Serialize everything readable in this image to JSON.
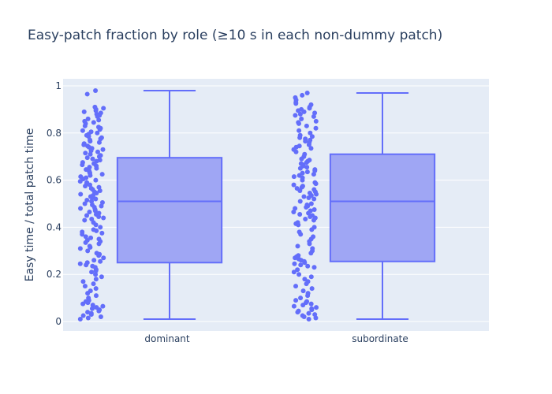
{
  "chart_data": {
    "type": "box",
    "title": "Easy-patch fraction by role (≥10 s in each non-dummy patch)",
    "xlabel": "",
    "ylabel": "Easy time / total patch time",
    "ylim": [
      -0.04,
      1.03
    ],
    "yticks": [
      0,
      0.2,
      0.4,
      0.6,
      0.8,
      1
    ],
    "ytick_labels": [
      "0",
      "0.2",
      "0.4",
      "0.6",
      "0.8",
      "1"
    ],
    "categories": [
      "dominant",
      "subordinate"
    ],
    "boxes": [
      {
        "category": "dominant",
        "min": 0.01,
        "q1": 0.25,
        "median": 0.51,
        "q3": 0.695,
        "max": 0.98
      },
      {
        "category": "subordinate",
        "min": 0.01,
        "q1": 0.255,
        "median": 0.51,
        "q3": 0.71,
        "max": 0.97
      }
    ],
    "points": [
      {
        "category": "dominant",
        "values": [
          0.98,
          0.965,
          0.91,
          0.905,
          0.9,
          0.895,
          0.89,
          0.885,
          0.88,
          0.875,
          0.87,
          0.86,
          0.855,
          0.85,
          0.845,
          0.84,
          0.83,
          0.825,
          0.82,
          0.815,
          0.81,
          0.805,
          0.8,
          0.795,
          0.79,
          0.785,
          0.78,
          0.775,
          0.77,
          0.765,
          0.76,
          0.755,
          0.75,
          0.745,
          0.74,
          0.735,
          0.73,
          0.725,
          0.72,
          0.715,
          0.71,
          0.705,
          0.7,
          0.695,
          0.69,
          0.685,
          0.68,
          0.675,
          0.67,
          0.665,
          0.66,
          0.655,
          0.65,
          0.645,
          0.64,
          0.635,
          0.63,
          0.625,
          0.62,
          0.615,
          0.61,
          0.605,
          0.6,
          0.595,
          0.59,
          0.585,
          0.58,
          0.575,
          0.57,
          0.565,
          0.56,
          0.555,
          0.55,
          0.545,
          0.54,
          0.535,
          0.53,
          0.525,
          0.52,
          0.515,
          0.51,
          0.505,
          0.5,
          0.495,
          0.49,
          0.485,
          0.48,
          0.475,
          0.47,
          0.465,
          0.46,
          0.455,
          0.45,
          0.445,
          0.44,
          0.435,
          0.43,
          0.42,
          0.41,
          0.4,
          0.39,
          0.385,
          0.38,
          0.375,
          0.37,
          0.36,
          0.355,
          0.35,
          0.345,
          0.34,
          0.335,
          0.33,
          0.32,
          0.315,
          0.31,
          0.3,
          0.29,
          0.285,
          0.28,
          0.27,
          0.26,
          0.255,
          0.25,
          0.245,
          0.24,
          0.235,
          0.23,
          0.22,
          0.215,
          0.21,
          0.2,
          0.19,
          0.18,
          0.17,
          0.16,
          0.15,
          0.14,
          0.13,
          0.12,
          0.11,
          0.1,
          0.09,
          0.085,
          0.08,
          0.075,
          0.07,
          0.065,
          0.06,
          0.055,
          0.05,
          0.045,
          0.04,
          0.035,
          0.03,
          0.025,
          0.02,
          0.015,
          0.01
        ]
      },
      {
        "category": "subordinate",
        "values": [
          0.97,
          0.96,
          0.95,
          0.94,
          0.93,
          0.925,
          0.92,
          0.91,
          0.905,
          0.9,
          0.895,
          0.89,
          0.885,
          0.88,
          0.875,
          0.87,
          0.86,
          0.85,
          0.845,
          0.84,
          0.83,
          0.82,
          0.81,
          0.8,
          0.79,
          0.785,
          0.78,
          0.775,
          0.77,
          0.765,
          0.76,
          0.75,
          0.745,
          0.74,
          0.735,
          0.73,
          0.72,
          0.71,
          0.7,
          0.69,
          0.685,
          0.68,
          0.675,
          0.67,
          0.665,
          0.66,
          0.655,
          0.65,
          0.645,
          0.64,
          0.635,
          0.63,
          0.625,
          0.62,
          0.615,
          0.61,
          0.6,
          0.59,
          0.585,
          0.58,
          0.575,
          0.57,
          0.565,
          0.56,
          0.555,
          0.55,
          0.545,
          0.54,
          0.535,
          0.53,
          0.525,
          0.52,
          0.51,
          0.5,
          0.495,
          0.49,
          0.485,
          0.48,
          0.475,
          0.47,
          0.465,
          0.46,
          0.455,
          0.45,
          0.445,
          0.44,
          0.435,
          0.43,
          0.42,
          0.415,
          0.41,
          0.4,
          0.39,
          0.38,
          0.37,
          0.36,
          0.35,
          0.34,
          0.33,
          0.32,
          0.31,
          0.3,
          0.29,
          0.28,
          0.275,
          0.27,
          0.265,
          0.26,
          0.255,
          0.25,
          0.245,
          0.24,
          0.235,
          0.23,
          0.22,
          0.21,
          0.2,
          0.19,
          0.18,
          0.17,
          0.16,
          0.15,
          0.14,
          0.13,
          0.12,
          0.11,
          0.1,
          0.09,
          0.085,
          0.08,
          0.075,
          0.07,
          0.065,
          0.06,
          0.055,
          0.05,
          0.045,
          0.04,
          0.035,
          0.03,
          0.025,
          0.02,
          0.015,
          0.01
        ]
      }
    ],
    "grid": true,
    "colors": {
      "plot_bg": "#e5ecf6",
      "grid": "#ffffff",
      "box_fill": "#9fa6f4",
      "box_line": "#636efa",
      "points": "#636efa",
      "text": "#2a3f5f"
    }
  }
}
